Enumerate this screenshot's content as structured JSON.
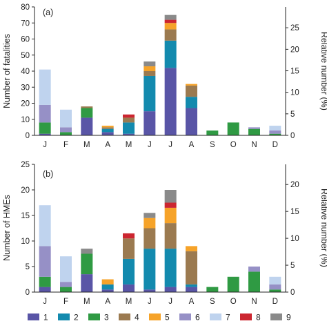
{
  "colors": [
    "#5955a6",
    "#138aae",
    "#2f9a43",
    "#9b7a50",
    "#f6a329",
    "#9690c6",
    "#bfd3ee",
    "#cc2630",
    "#8a8a8a"
  ],
  "legend": [
    "1",
    "2",
    "3",
    "4",
    "5",
    "6",
    "7",
    "8",
    "9"
  ],
  "chart_data": [
    {
      "type": "bar",
      "stacked": true,
      "panel_label": "(a)",
      "ylabel": "Number of fatalities",
      "y2label": "Relative number (%)",
      "categories": [
        "J",
        "F",
        "M",
        "A",
        "M",
        "J",
        "J",
        "A",
        "S",
        "O",
        "N",
        "D"
      ],
      "ylim": [
        0,
        80
      ],
      "yticks": [
        0,
        10,
        20,
        30,
        40,
        50,
        60,
        70,
        80
      ],
      "y2lim": [
        0,
        29.85
      ],
      "y2ticks": [
        0,
        5,
        10,
        15,
        20,
        25
      ],
      "series": [
        {
          "name": "1",
          "values": [
            1,
            0,
            11,
            2,
            1,
            15,
            42,
            17,
            0,
            0,
            0,
            0
          ]
        },
        {
          "name": "2",
          "values": [
            0,
            0,
            0,
            2,
            7,
            22,
            17,
            7,
            0,
            0,
            0,
            0
          ]
        },
        {
          "name": "3",
          "values": [
            7,
            2,
            6,
            0,
            0,
            0,
            0,
            0,
            3,
            8,
            4,
            1
          ]
        },
        {
          "name": "4",
          "values": [
            0,
            0,
            1,
            1,
            3,
            3,
            7,
            7,
            0,
            0,
            0,
            0
          ]
        },
        {
          "name": "5",
          "values": [
            0,
            0,
            0,
            1,
            0,
            3,
            4,
            1,
            0,
            0,
            0,
            0
          ]
        },
        {
          "name": "6",
          "values": [
            11,
            3,
            0,
            0,
            0,
            0,
            0,
            0,
            0,
            0,
            1,
            2
          ]
        },
        {
          "name": "7",
          "values": [
            22,
            11,
            0,
            0,
            0,
            0,
            0,
            0,
            0,
            0,
            0,
            3
          ]
        },
        {
          "name": "8",
          "values": [
            0,
            0,
            0,
            0,
            2,
            0,
            2,
            0,
            0,
            0,
            0,
            0
          ]
        },
        {
          "name": "9",
          "values": [
            0,
            0,
            0,
            0,
            0,
            3,
            3,
            0,
            0,
            0,
            0,
            0
          ]
        }
      ]
    },
    {
      "type": "bar",
      "stacked": true,
      "panel_label": "(b)",
      "ylabel": "Number of HMEs",
      "y2label": "Relative number (%)",
      "categories": [
        "J",
        "F",
        "M",
        "A",
        "M",
        "J",
        "J",
        "A",
        "S",
        "O",
        "N",
        "D"
      ],
      "ylim": [
        0,
        25
      ],
      "yticks": [
        0,
        5,
        10,
        15,
        20,
        25
      ],
      "y2lim": [
        0,
        23.75
      ],
      "y2ticks": [
        0,
        5,
        10,
        15,
        20
      ],
      "series": [
        {
          "name": "1",
          "values": [
            1,
            0,
            3.5,
            0.5,
            1.5,
            0.5,
            1,
            1,
            0,
            0,
            0,
            0
          ]
        },
        {
          "name": "2",
          "values": [
            0,
            0,
            0,
            1,
            5,
            8,
            7.5,
            0.5,
            0,
            0,
            0,
            0
          ]
        },
        {
          "name": "3",
          "values": [
            2,
            1,
            4,
            0,
            0,
            0,
            0,
            0,
            1,
            3,
            4,
            0.5
          ]
        },
        {
          "name": "4",
          "values": [
            0,
            0,
            0,
            0,
            4,
            4,
            5,
            6.5,
            0,
            0,
            0,
            0
          ]
        },
        {
          "name": "5",
          "values": [
            0,
            0,
            0,
            1,
            0,
            2,
            3,
            1,
            0,
            0,
            0,
            0
          ]
        },
        {
          "name": "6",
          "values": [
            6,
            1,
            0,
            0,
            0,
            0,
            0,
            0,
            0,
            0,
            1,
            1
          ]
        },
        {
          "name": "7",
          "values": [
            8,
            5,
            0,
            0,
            0,
            0,
            0,
            0,
            0,
            0,
            0,
            1.5
          ]
        },
        {
          "name": "8",
          "values": [
            0,
            0,
            0,
            0,
            1,
            0,
            1,
            0,
            0,
            0,
            0,
            0
          ]
        },
        {
          "name": "9",
          "values": [
            0,
            0,
            1,
            0,
            0,
            1,
            2.5,
            0,
            0,
            0,
            0,
            0
          ]
        }
      ]
    }
  ]
}
